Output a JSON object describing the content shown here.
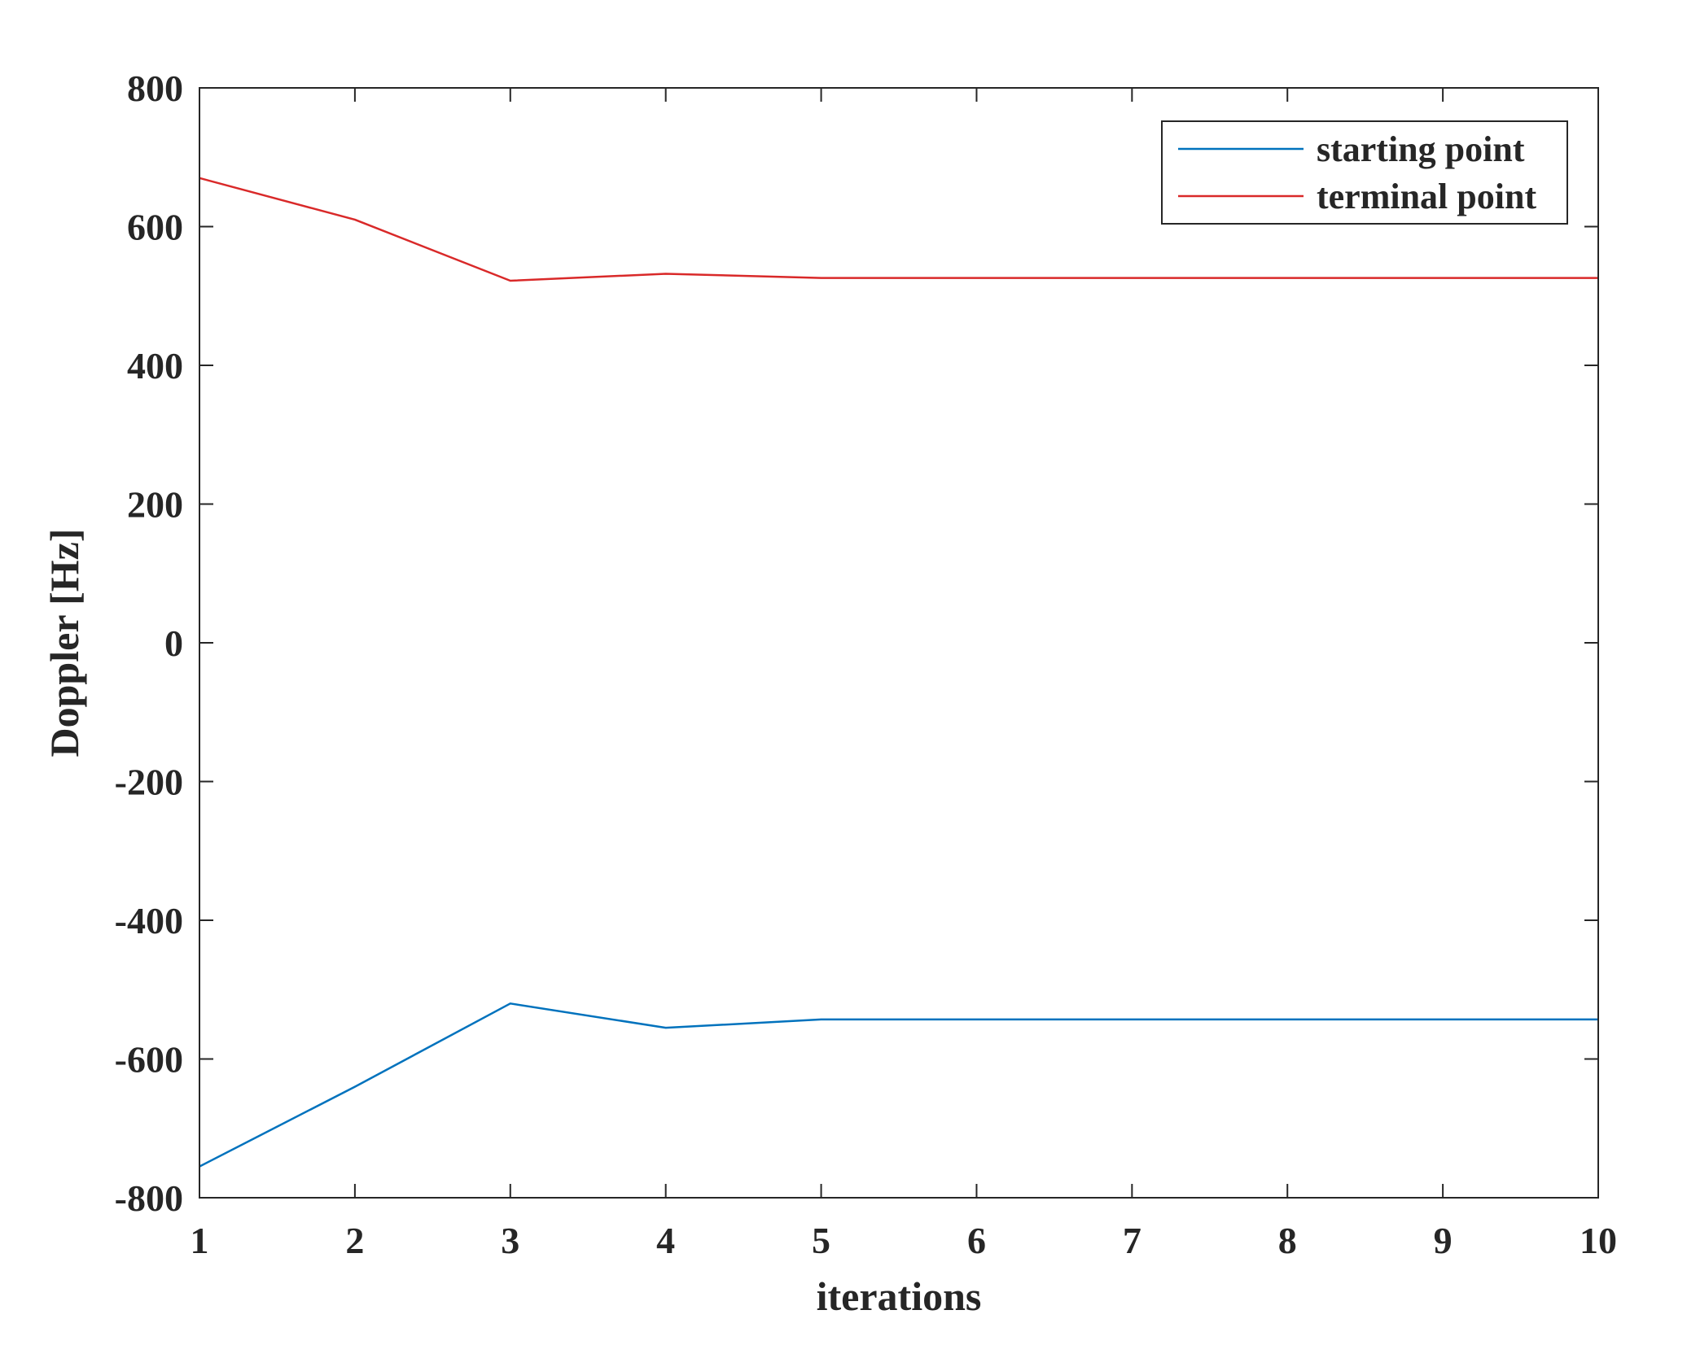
{
  "chart_data": {
    "type": "line",
    "title": "",
    "xlabel": "iterations",
    "ylabel": "Doppler [Hz]",
    "x": [
      1,
      2,
      3,
      4,
      5,
      6,
      7,
      8,
      9,
      10
    ],
    "xlim": [
      1,
      10
    ],
    "ylim": [
      -800,
      800
    ],
    "xticks": [
      "1",
      "2",
      "3",
      "4",
      "5",
      "6",
      "7",
      "8",
      "9",
      "10"
    ],
    "yticks": [
      "-800",
      "-600",
      "-400",
      "-200",
      "0",
      "200",
      "400",
      "600",
      "800"
    ],
    "grid": false,
    "legend_position": "top-right",
    "series": [
      {
        "name": "starting point",
        "color": "#0072bd",
        "values": [
          -755,
          -640,
          -520,
          -555,
          -543,
          -543,
          -543,
          -543,
          -543,
          -543
        ]
      },
      {
        "name": "terminal point",
        "color": "#d92929",
        "values": [
          670,
          610,
          522,
          532,
          526,
          526,
          526,
          526,
          526,
          526
        ]
      }
    ]
  }
}
